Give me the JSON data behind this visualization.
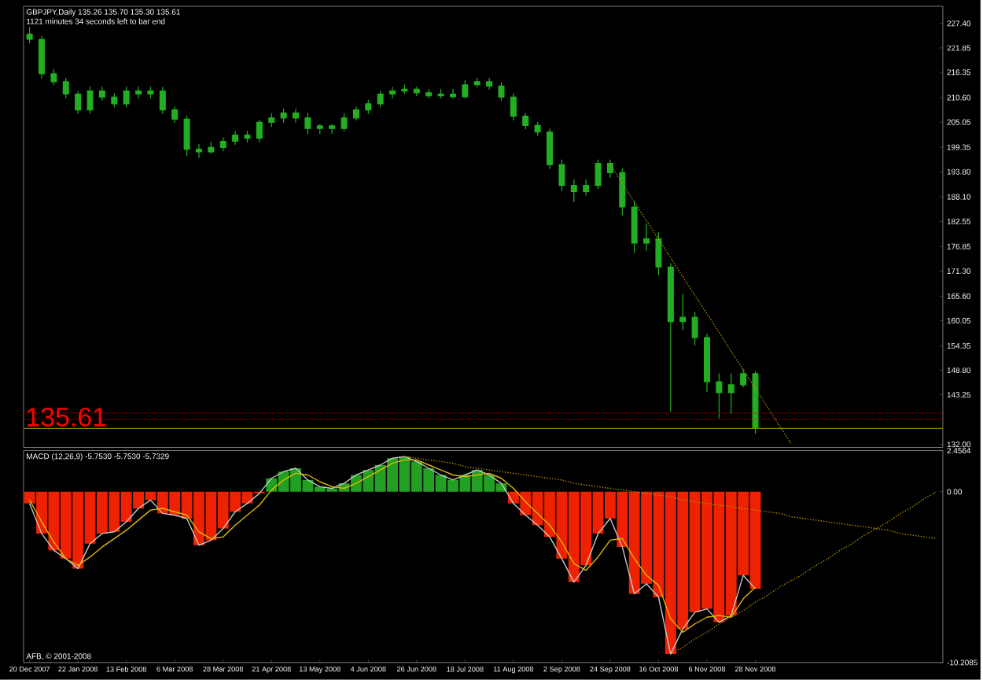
{
  "chart_data": [
    {
      "type": "candlestick",
      "title": "GBPJPY,Daily 135.26 135.70 135.30 135.61",
      "subtitle": "1121 minutes 34 seconds left to bar end",
      "color": "#22b022",
      "categories": [
        null,
        null,
        null,
        null,
        null,
        null,
        null,
        null,
        null,
        null,
        null,
        null,
        null,
        null,
        null,
        null,
        null,
        null,
        null,
        null,
        null,
        null,
        null,
        null,
        null,
        null,
        null,
        null,
        null,
        null,
        null,
        null,
        null,
        null,
        null,
        null,
        null,
        null,
        null,
        null,
        null,
        null,
        null,
        null,
        null,
        null,
        null,
        null,
        null,
        null,
        null,
        null,
        null,
        null,
        null,
        null,
        null,
        null,
        null,
        null,
        null,
        null,
        null,
        null,
        null,
        null,
        null,
        null,
        null,
        null,
        null,
        null,
        null,
        null,
        null,
        null
      ],
      "ohlc": [
        [
          225.0,
          226.5,
          223.0,
          223.8
        ],
        [
          223.8,
          224.5,
          215.0,
          216.0
        ],
        [
          216.0,
          217.0,
          213.5,
          214.2
        ],
        [
          214.2,
          215.0,
          210.5,
          211.4
        ],
        [
          211.4,
          212.0,
          207.0,
          207.8
        ],
        [
          207.8,
          213.0,
          207.0,
          212.1
        ],
        [
          212.1,
          213.0,
          210.0,
          210.7
        ],
        [
          210.7,
          211.5,
          208.5,
          209.2
        ],
        [
          209.2,
          213.0,
          208.5,
          212.1
        ],
        [
          212.1,
          213.0,
          210.5,
          211.4
        ],
        [
          211.4,
          213.0,
          210.5,
          212.1
        ],
        [
          212.1,
          213.0,
          207.0,
          207.8
        ],
        [
          207.8,
          208.5,
          205.0,
          205.7
        ],
        [
          205.7,
          206.5,
          197.5,
          198.9
        ],
        [
          198.9,
          200.0,
          197.0,
          198.3
        ],
        [
          198.3,
          200.5,
          198.0,
          199.3
        ],
        [
          199.3,
          201.5,
          198.5,
          200.7
        ],
        [
          200.7,
          203.0,
          200.0,
          202.1
        ],
        [
          202.1,
          203.0,
          200.5,
          201.4
        ],
        [
          201.4,
          205.5,
          200.5,
          205.0
        ],
        [
          205.0,
          207.0,
          204.0,
          206.0
        ],
        [
          206.0,
          208.0,
          205.0,
          207.1
        ],
        [
          207.1,
          208.0,
          205.0,
          206.0
        ],
        [
          206.0,
          207.0,
          202.5,
          203.6
        ],
        [
          203.6,
          204.5,
          202.5,
          204.2
        ],
        [
          204.2,
          204.5,
          202.5,
          203.6
        ],
        [
          203.6,
          207.0,
          203.0,
          206.0
        ],
        [
          206.0,
          208.5,
          205.5,
          207.8
        ],
        [
          207.8,
          210.0,
          207.0,
          209.2
        ],
        [
          209.2,
          212.0,
          208.5,
          211.4
        ],
        [
          211.4,
          213.0,
          210.5,
          212.1
        ],
        [
          212.1,
          213.5,
          211.5,
          212.5
        ],
        [
          212.5,
          213.0,
          211.0,
          211.7
        ],
        [
          211.7,
          212.5,
          210.5,
          211.0
        ],
        [
          211.0,
          212.5,
          210.5,
          211.4
        ],
        [
          211.4,
          212.5,
          210.5,
          210.8
        ],
        [
          210.8,
          214.5,
          210.5,
          213.5
        ],
        [
          213.5,
          215.0,
          213.0,
          214.2
        ],
        [
          214.2,
          215.0,
          212.5,
          213.2
        ],
        [
          213.2,
          214.0,
          210.0,
          210.7
        ],
        [
          210.7,
          211.5,
          205.5,
          206.4
        ],
        [
          206.4,
          207.0,
          203.5,
          204.3
        ],
        [
          204.3,
          205.0,
          202.0,
          202.8
        ],
        [
          202.8,
          203.5,
          194.5,
          195.4
        ],
        [
          195.4,
          196.5,
          189.5,
          190.7
        ],
        [
          190.7,
          192.0,
          187.0,
          189.3
        ],
        [
          189.3,
          192.0,
          188.5,
          190.7
        ],
        [
          190.7,
          196.5,
          190.0,
          195.7
        ],
        [
          195.7,
          196.5,
          192.5,
          193.6
        ],
        [
          193.6,
          194.5,
          184.0,
          185.8
        ],
        [
          185.8,
          187.0,
          175.5,
          177.6
        ],
        [
          177.6,
          182.0,
          176.0,
          178.6
        ],
        [
          178.6,
          180.0,
          170.5,
          172.2
        ],
        [
          172.2,
          173.0,
          139.5,
          159.8
        ],
        [
          159.8,
          166.0,
          158.0,
          160.8
        ],
        [
          160.8,
          162.0,
          154.5,
          156.2
        ],
        [
          156.2,
          157.0,
          144.0,
          146.2
        ],
        [
          146.2,
          148.0,
          138.0,
          143.7
        ],
        [
          143.7,
          148.0,
          139.0,
          145.5
        ],
        [
          145.5,
          149.0,
          145.0,
          148.0
        ],
        [
          148.0,
          148.5,
          134.5,
          135.6
        ],
        null,
        null,
        null,
        null,
        null,
        null,
        null,
        null,
        null,
        null,
        null,
        null,
        null,
        null,
        null
      ],
      "series": [
        {
          "type": "line",
          "values": [
            null,
            null,
            null,
            null,
            null,
            null,
            null,
            null,
            null,
            null,
            null,
            null,
            null,
            null,
            null,
            null,
            null,
            null,
            null,
            null,
            null,
            null,
            null,
            null,
            null,
            null,
            null,
            null,
            null,
            null,
            null,
            null,
            null,
            null,
            null,
            null,
            null,
            null,
            null,
            null,
            null,
            null,
            null,
            null,
            null,
            null,
            null,
            null,
            195.4,
            191.2,
            186.9,
            182.7,
            178.5,
            174.3,
            170.0,
            165.8,
            161.6,
            157.4,
            153.1,
            148.9,
            144.7,
            140.5,
            136.2,
            132.0,
            null,
            null,
            null,
            null,
            null,
            null,
            null,
            null,
            null,
            null,
            null,
            null
          ],
          "color": "#b09000",
          "line_style": "dotted"
        }
      ],
      "ref_lines": [
        {
          "axis": "y",
          "value": 139.1,
          "color": "#cc0000",
          "line_style": "dotted"
        },
        {
          "axis": "y",
          "value": 137.7,
          "color": "#cc0000",
          "line_style": "dotted"
        },
        {
          "axis": "y",
          "value": 135.61,
          "color": "#808000",
          "line_style": "solid"
        }
      ],
      "annotations": [
        {
          "text": "135.61",
          "y": 135.61
        }
      ],
      "ylim": [
        131.3,
        231.3
      ],
      "yticks": [
        {
          "value": 227.4,
          "label": "227.40"
        },
        221.85,
        216.35,
        {
          "value": 210.6,
          "label": "210.60"
        },
        205.05,
        199.35,
        {
          "value": 193.8,
          "label": "193.80"
        },
        {
          "value": 188.1,
          "label": "188.10"
        },
        182.55,
        176.85,
        {
          "value": 171.3,
          "label": "171.30"
        },
        {
          "value": 165.6,
          "label": "165.60"
        },
        160.05,
        154.35,
        {
          "value": 148.8,
          "label": "148.80"
        },
        143.25,
        {
          "value": 132.0,
          "label": "132.00"
        }
      ],
      "tick_labels": "y"
    },
    {
      "type": "bar",
      "title": "MACD (12,26,9) -5.7530 -5.7530 -5.7329",
      "categories": [
        "20 Dec 2007",
        null,
        null,
        null,
        "22 Jan 2008",
        null,
        null,
        null,
        "13 Feb 2008",
        null,
        null,
        null,
        "6 Mar 2008",
        null,
        null,
        null,
        "28 Mar 2008",
        null,
        null,
        null,
        "21 Apr 2008",
        null,
        null,
        null,
        "13 May 2008",
        null,
        null,
        null,
        "4 Jun 2008",
        null,
        null,
        null,
        "26 Jun 2008",
        null,
        null,
        null,
        "18 Jul 2008",
        null,
        null,
        null,
        "11 Aug 2008",
        null,
        null,
        null,
        "2 Sep 2008",
        null,
        null,
        null,
        "24 Sep 2008",
        null,
        null,
        null,
        "16 Oct 2008",
        null,
        null,
        null,
        "6 Nov 2008",
        null,
        null,
        null,
        "28 Nov 2008",
        null,
        null,
        null,
        null,
        null,
        null,
        null,
        null,
        null,
        null,
        null,
        null,
        null,
        null,
        null
      ],
      "series": [
        {
          "type": "bar",
          "values": [
            -0.7,
            -2.5,
            -3.5,
            -4.0,
            -4.6,
            -3.1,
            -2.5,
            -2.4,
            -1.8,
            -1.0,
            -0.5,
            -1.3,
            -1.4,
            -1.6,
            -3.2,
            -2.9,
            -2.2,
            -1.2,
            -0.7,
            -0.1,
            0.8,
            1.2,
            1.4,
            0.7,
            0.3,
            0.2,
            0.5,
            1.0,
            1.3,
            1.6,
            2.0,
            2.1,
            1.8,
            1.4,
            1.0,
            0.7,
            1.0,
            1.3,
            1.0,
            0.5,
            -0.7,
            -1.4,
            -2.0,
            -2.7,
            -4.0,
            -5.4,
            -4.4,
            -2.5,
            -1.6,
            -3.3,
            -6.1,
            -5.5,
            -6.3,
            -9.7,
            -8.2,
            -7.2,
            -7.0,
            -7.8,
            -7.4,
            -5.0,
            -5.8,
            null,
            null,
            null,
            null,
            null,
            null,
            null,
            null,
            null,
            null,
            null,
            null,
            null,
            null,
            null
          ],
          "colors": [
            "#ee2200",
            "#ee2200",
            "#ee2200",
            "#ee2200",
            "#ee2200",
            "#ee2200",
            "#ee2200",
            "#ee2200",
            "#ee2200",
            "#ee2200",
            "#ee2200",
            "#ee2200",
            "#ee2200",
            "#ee2200",
            "#ee2200",
            "#ee2200",
            "#ee2200",
            "#ee2200",
            "#ee2200",
            "#ee2200",
            "#22a022",
            "#22a022",
            "#22a022",
            "#22a022",
            "#22a022",
            "#22a022",
            "#22a022",
            "#22a022",
            "#22a022",
            "#22a022",
            "#22a022",
            "#22a022",
            "#22a022",
            "#22a022",
            "#22a022",
            "#22a022",
            "#22a022",
            "#22a022",
            "#22a022",
            "#22a022",
            "#ee2200",
            "#ee2200",
            "#ee2200",
            "#ee2200",
            "#ee2200",
            "#ee2200",
            "#ee2200",
            "#ee2200",
            "#ee2200",
            "#ee2200",
            "#ee2200",
            "#ee2200",
            "#ee2200",
            "#ee2200",
            "#ee2200",
            "#ee2200",
            "#ee2200",
            "#ee2200",
            "#ee2200",
            "#ee2200",
            "#ee2200",
            null,
            null,
            null,
            null,
            null,
            null,
            null,
            null,
            null,
            null,
            null,
            null,
            null,
            null,
            null
          ]
        },
        {
          "type": "line",
          "color": "#c8c8c8",
          "values": [
            -0.7,
            -2.5,
            -3.5,
            -4.0,
            -4.6,
            -3.1,
            -2.5,
            -2.4,
            -1.8,
            -1.0,
            -0.5,
            -1.3,
            -1.4,
            -1.6,
            -3.2,
            -2.9,
            -2.2,
            -1.2,
            -0.7,
            -0.1,
            0.8,
            1.2,
            1.4,
            0.7,
            0.3,
            0.2,
            0.5,
            1.0,
            1.3,
            1.6,
            2.0,
            2.1,
            1.8,
            1.4,
            1.0,
            0.7,
            1.0,
            1.3,
            1.0,
            0.5,
            -0.7,
            -1.4,
            -2.0,
            -2.7,
            -4.0,
            -5.4,
            -4.4,
            -2.5,
            -1.6,
            -3.3,
            -6.1,
            -5.5,
            -6.3,
            -9.7,
            -8.2,
            -7.2,
            -7.0,
            -7.8,
            -7.4,
            -5.0,
            -5.8,
            null,
            null,
            null,
            null,
            null,
            null,
            null,
            null,
            null,
            null,
            null,
            null,
            null,
            null,
            null
          ]
        },
        {
          "type": "line",
          "color": "#e0b800",
          "values": [
            -0.5,
            -1.8,
            -3.0,
            -4.0,
            -4.4,
            -3.9,
            -3.3,
            -2.8,
            -2.3,
            -1.7,
            -1.1,
            -1.0,
            -1.2,
            -1.4,
            -2.4,
            -2.8,
            -2.7,
            -2.0,
            -1.4,
            -0.8,
            0.1,
            0.7,
            1.1,
            1.0,
            0.6,
            0.3,
            0.2,
            0.5,
            0.9,
            1.3,
            1.7,
            1.9,
            1.9,
            1.6,
            1.3,
            1.0,
            0.9,
            1.0,
            1.1,
            0.8,
            0.2,
            -0.6,
            -1.3,
            -2.0,
            -3.0,
            -4.3,
            -4.7,
            -3.9,
            -2.9,
            -2.8,
            -4.0,
            -5.0,
            -5.6,
            -7.6,
            -8.4,
            -7.9,
            -7.5,
            -7.4,
            -7.5,
            -6.4,
            -5.7,
            null,
            null,
            null,
            null,
            null,
            null,
            null,
            null,
            null,
            null,
            null,
            null,
            null,
            null,
            null
          ]
        },
        {
          "type": "line",
          "values": [
            null,
            null,
            null,
            null,
            null,
            null,
            null,
            null,
            null,
            null,
            null,
            null,
            null,
            null,
            null,
            null,
            null,
            null,
            null,
            null,
            null,
            null,
            null,
            null,
            null,
            null,
            null,
            null,
            null,
            null,
            null,
            2.1,
            2.0,
            1.9,
            1.8,
            1.7,
            1.5,
            1.4,
            1.3,
            1.2,
            1.1,
            1.0,
            0.9,
            0.8,
            0.7,
            0.5,
            0.4,
            0.3,
            0.2,
            0.1,
            0.0,
            -0.1,
            -0.2,
            -0.3,
            -0.5,
            -0.6,
            -0.7,
            -0.8,
            -0.9,
            -1.0,
            -1.1,
            -1.2,
            -1.3,
            -1.5,
            -1.6,
            -1.7,
            -1.8,
            -1.9,
            -2.0,
            -2.1,
            -2.2,
            -2.3,
            -2.5,
            -2.6,
            -2.7,
            -2.8
          ],
          "color": "#b09000",
          "line_style": "dotted"
        },
        {
          "type": "line",
          "values": [
            null,
            null,
            null,
            null,
            null,
            null,
            null,
            null,
            null,
            null,
            null,
            null,
            null,
            null,
            null,
            null,
            null,
            null,
            null,
            null,
            null,
            null,
            null,
            null,
            null,
            null,
            null,
            null,
            null,
            null,
            null,
            null,
            null,
            null,
            null,
            null,
            null,
            null,
            null,
            null,
            null,
            null,
            null,
            null,
            null,
            null,
            null,
            null,
            null,
            null,
            null,
            null,
            null,
            -9.7,
            -9.3,
            -8.8,
            -8.4,
            -7.9,
            -7.5,
            -7.1,
            -6.6,
            -6.2,
            -5.7,
            -5.3,
            -4.9,
            -4.4,
            -4.0,
            -3.5,
            -3.1,
            -2.6,
            -2.2,
            -1.8,
            -1.3,
            -0.9,
            -0.4,
            0.0
          ],
          "color": "#b09000",
          "line_style": "dotted"
        }
      ],
      "annotations": [
        "AFB, © 2001-2008"
      ],
      "ylim": [
        -10.2085,
        2.4564
      ],
      "yticks": [
        2.4564,
        {
          "value": 0,
          "label": "0.00"
        },
        -10.2085
      ]
    }
  ]
}
